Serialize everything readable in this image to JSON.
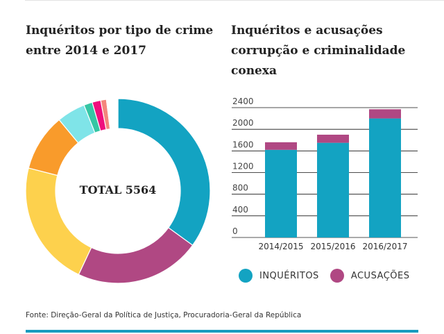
{
  "donut": {
    "title_lines": [
      "Inquéritos por tipo de crime",
      "entre 2014 e 2017"
    ],
    "center_label": "TOTAL 5564"
  },
  "bars": {
    "title_lines": [
      "Inquéritos e acusações",
      "corrupção e criminalidade",
      "conexa"
    ]
  },
  "source": "Fonte: Direção-Geral da Política de Justiça, Procuradoria-Geral da República",
  "chart_data": [
    {
      "type": "pie",
      "title": "Inquéritos por tipo de crime entre 2014 e 2017",
      "center_label": "TOTAL 5564",
      "total": 5564,
      "slices": [
        {
          "value": 0.35,
          "color": "#13a3c2"
        },
        {
          "value": 0.22,
          "color": "#b04883"
        },
        {
          "value": 0.22,
          "color": "#fdd14d"
        },
        {
          "value": 0.1,
          "color": "#f99b2b"
        },
        {
          "value": 0.05,
          "color": "#7fe4e8"
        },
        {
          "value": 0.015,
          "color": "#35c6a4"
        },
        {
          "value": 0.015,
          "color": "#ef0f7d"
        },
        {
          "value": 0.01,
          "color": "#f4867c"
        },
        {
          "value": 0.02,
          "color": "#ffffff"
        }
      ]
    },
    {
      "type": "bar",
      "stacked": true,
      "title": "Inquéritos e acusações corrupção e criminalidade conexa",
      "categories": [
        "2014/2015",
        "2015/2016",
        "2016/2017"
      ],
      "series": [
        {
          "name": "INQUÉRITOS",
          "values": [
            1620,
            1750,
            2200
          ],
          "color": "#13a3c2"
        },
        {
          "name": "ACUSAÇÕES",
          "values": [
            140,
            150,
            170
          ],
          "color": "#b04883"
        }
      ],
      "y_ticks": [
        0,
        400,
        800,
        1200,
        1600,
        2000,
        2400
      ],
      "ylim": [
        0,
        2400
      ],
      "grid": true,
      "legend_position": "bottom"
    }
  ]
}
